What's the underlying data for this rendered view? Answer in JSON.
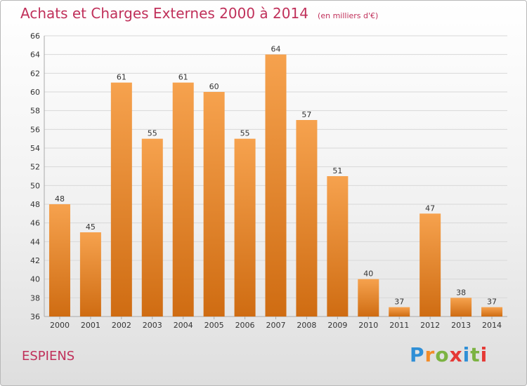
{
  "title": "Achats et Charges Externes 2000 à 2014",
  "subtitle": "(en milliers d'€)",
  "place": "ESPIENS",
  "brand": {
    "letters": [
      "P",
      "r",
      "o",
      "x",
      "i",
      "t",
      "i"
    ],
    "colors": [
      "#2f8fd6",
      "#f28c28",
      "#7cb342",
      "#e53935",
      "#2f8fd6",
      "#7cb342",
      "#e53935"
    ]
  },
  "colors": {
    "bar_top": "#f6a24e",
    "bar_bottom": "#cf6c12",
    "text": "#c0305a",
    "axis_text": "#333333",
    "grid": "#d8d8d8"
  },
  "chart_data": {
    "type": "bar",
    "title": "Achats et Charges Externes 2000 à 2014",
    "subtitle": "(en milliers d'€)",
    "categories": [
      "2000",
      "2001",
      "2002",
      "2003",
      "2004",
      "2005",
      "2006",
      "2007",
      "2008",
      "2009",
      "2010",
      "2011",
      "2012",
      "2013",
      "2014"
    ],
    "values": [
      48,
      45,
      61,
      55,
      61,
      60,
      55,
      64,
      57,
      51,
      40,
      37,
      47,
      38,
      37
    ],
    "ylim": [
      36,
      66
    ],
    "yticks": [
      36,
      38,
      40,
      42,
      44,
      46,
      48,
      50,
      52,
      54,
      56,
      58,
      60,
      62,
      64,
      66
    ],
    "grid": true,
    "xlabel": "",
    "ylabel": ""
  }
}
